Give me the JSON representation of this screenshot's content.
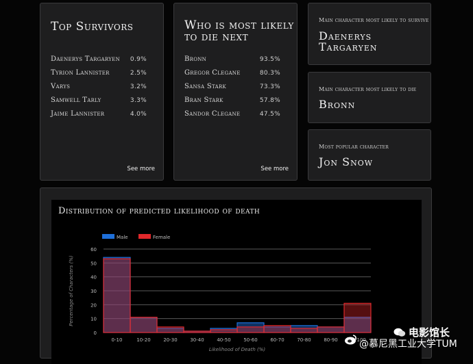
{
  "survivors": {
    "title": "Top Survivors",
    "rows": [
      {
        "name": "Daenerys Targaryen",
        "value": "0.9%"
      },
      {
        "name": "Tyrion Lannister",
        "value": "2.5%"
      },
      {
        "name": "Varys",
        "value": "3.2%"
      },
      {
        "name": "Samwell Tarly",
        "value": "3.3%"
      },
      {
        "name": "Jaime Lannister",
        "value": "4.0%"
      }
    ],
    "see_more": "See more"
  },
  "likely_to_die": {
    "title_line1": "Who is most likely",
    "title_line2": "to die next",
    "rows": [
      {
        "name": "Bronn",
        "value": "93.5%"
      },
      {
        "name": "Gregor Clegane",
        "value": "80.3%"
      },
      {
        "name": "Sansa Stark",
        "value": "73.3%"
      },
      {
        "name": "Bran Stark",
        "value": "57.8%"
      },
      {
        "name": "Sandor Clegane",
        "value": "47.5%"
      }
    ],
    "see_more": "See more"
  },
  "survive_card": {
    "heading": "Main character most likely to survive",
    "name_line1": "Daenerys",
    "name_line2": "Targaryen"
  },
  "die_card": {
    "heading": "Main character most likely to die",
    "name": "Bronn"
  },
  "popular_card": {
    "heading": "Most popular character",
    "name": "Jon Snow"
  },
  "chart_title": "Distribution of predicted likelihood of death",
  "chart_data": {
    "type": "bar",
    "categories": [
      "0-10",
      "10-20",
      "20-30",
      "30-40",
      "40-50",
      "50-60",
      "60-70",
      "70-80",
      "80-90",
      "90-100"
    ],
    "series": [
      {
        "name": "Male",
        "values": [
          54,
          11,
          3,
          1,
          3,
          7,
          4,
          5,
          4,
          11
        ]
      },
      {
        "name": "Female",
        "values": [
          53,
          11,
          4,
          1,
          2,
          4,
          5,
          3,
          4,
          21
        ]
      }
    ],
    "colors": {
      "Male": "#1e6fd9",
      "Female": "#e0282b"
    },
    "xlabel": "Likelihood of Death (%)",
    "ylabel": "Percentage of Characters (%)",
    "ylim": [
      0,
      60
    ],
    "yticks": [
      0,
      10,
      20,
      30,
      40,
      50,
      60
    ],
    "grid": true,
    "legend_position": "top-left"
  },
  "watermark": {
    "line1": "电影馆长",
    "line2": "@慕尼黑工业大学TUM"
  }
}
